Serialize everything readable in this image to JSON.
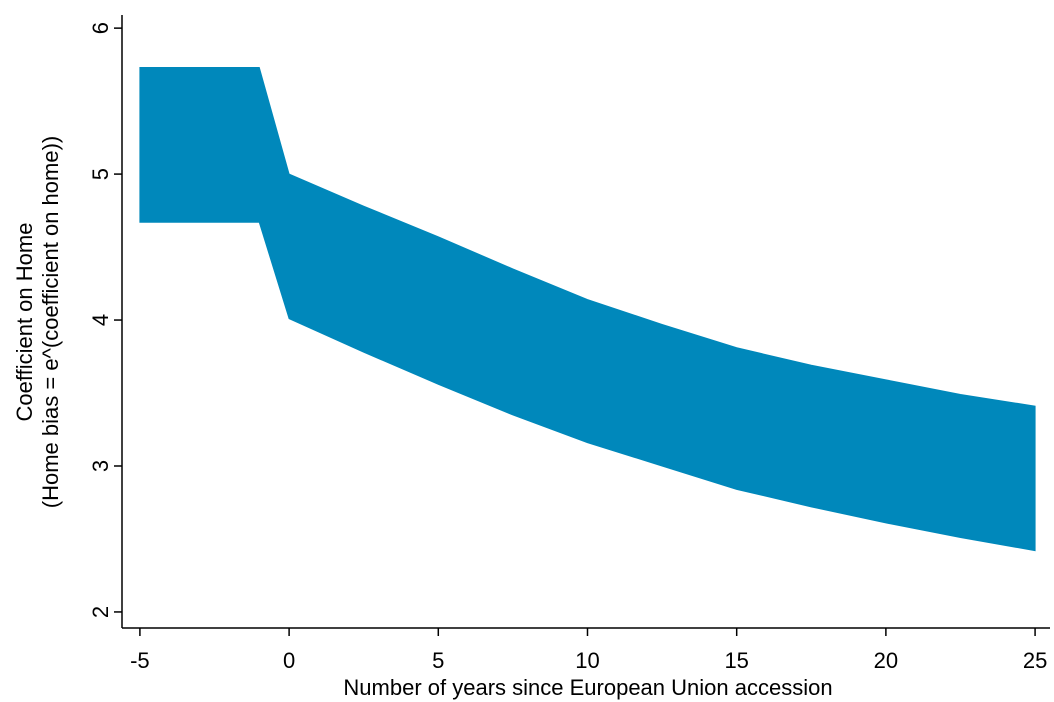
{
  "chart_data": {
    "type": "range-area",
    "xlabel": "Number of years since European Union accession",
    "ylabel": [
      "Coefficient on Home",
      "(Home bias = e^(coefficient on home))"
    ],
    "x": [
      -5,
      -1,
      0,
      2.5,
      5,
      7.5,
      10,
      12.5,
      15,
      17.5,
      20,
      22.5,
      25
    ],
    "upper": [
      5.73,
      5.73,
      5.0,
      4.78,
      4.57,
      4.35,
      4.14,
      3.97,
      3.81,
      3.69,
      3.59,
      3.49,
      3.41
    ],
    "lower": [
      4.67,
      4.67,
      4.01,
      3.78,
      3.56,
      3.35,
      3.16,
      3.0,
      2.84,
      2.72,
      2.61,
      2.51,
      2.42
    ],
    "color": "#0088bb",
    "xlim": [
      -5.6,
      25.5
    ],
    "xticks": [
      -5,
      0,
      5,
      10,
      15,
      20,
      25
    ],
    "ylim": [
      1.89,
      6.09
    ],
    "yticks": [
      2,
      3,
      4,
      5,
      6
    ]
  }
}
